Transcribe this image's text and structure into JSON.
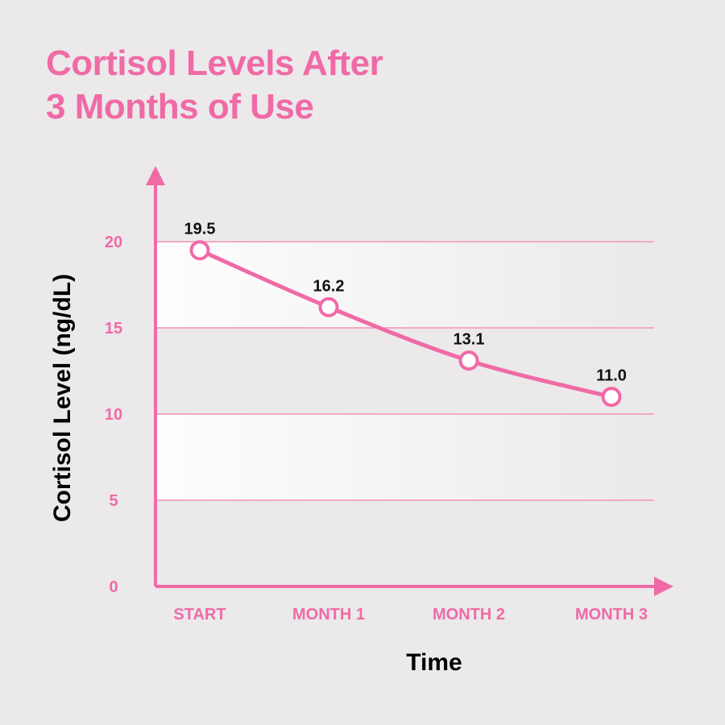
{
  "title_lines": [
    "Cortisol Levels After",
    "3 Months of Use"
  ],
  "colors": {
    "accent": "#f06aa6",
    "background": "#ebe9ea",
    "text": "#000000"
  },
  "chart_data": {
    "type": "line",
    "title": "Cortisol Levels After 3 Months of Use",
    "xlabel": "Time",
    "ylabel": "Cortisol Level (ng/dL)",
    "categories": [
      "START",
      "MONTH 1",
      "MONTH 2",
      "MONTH 3"
    ],
    "values": [
      19.5,
      16.2,
      13.1,
      11.0
    ],
    "data_labels": [
      "19.5",
      "16.2",
      "13.1",
      "11.0"
    ],
    "yticks": [
      0,
      5,
      10,
      15,
      20
    ],
    "ylim": [
      0,
      20
    ],
    "grid": true,
    "legend": "none",
    "smooth": true,
    "markers": "hollow-circle"
  }
}
